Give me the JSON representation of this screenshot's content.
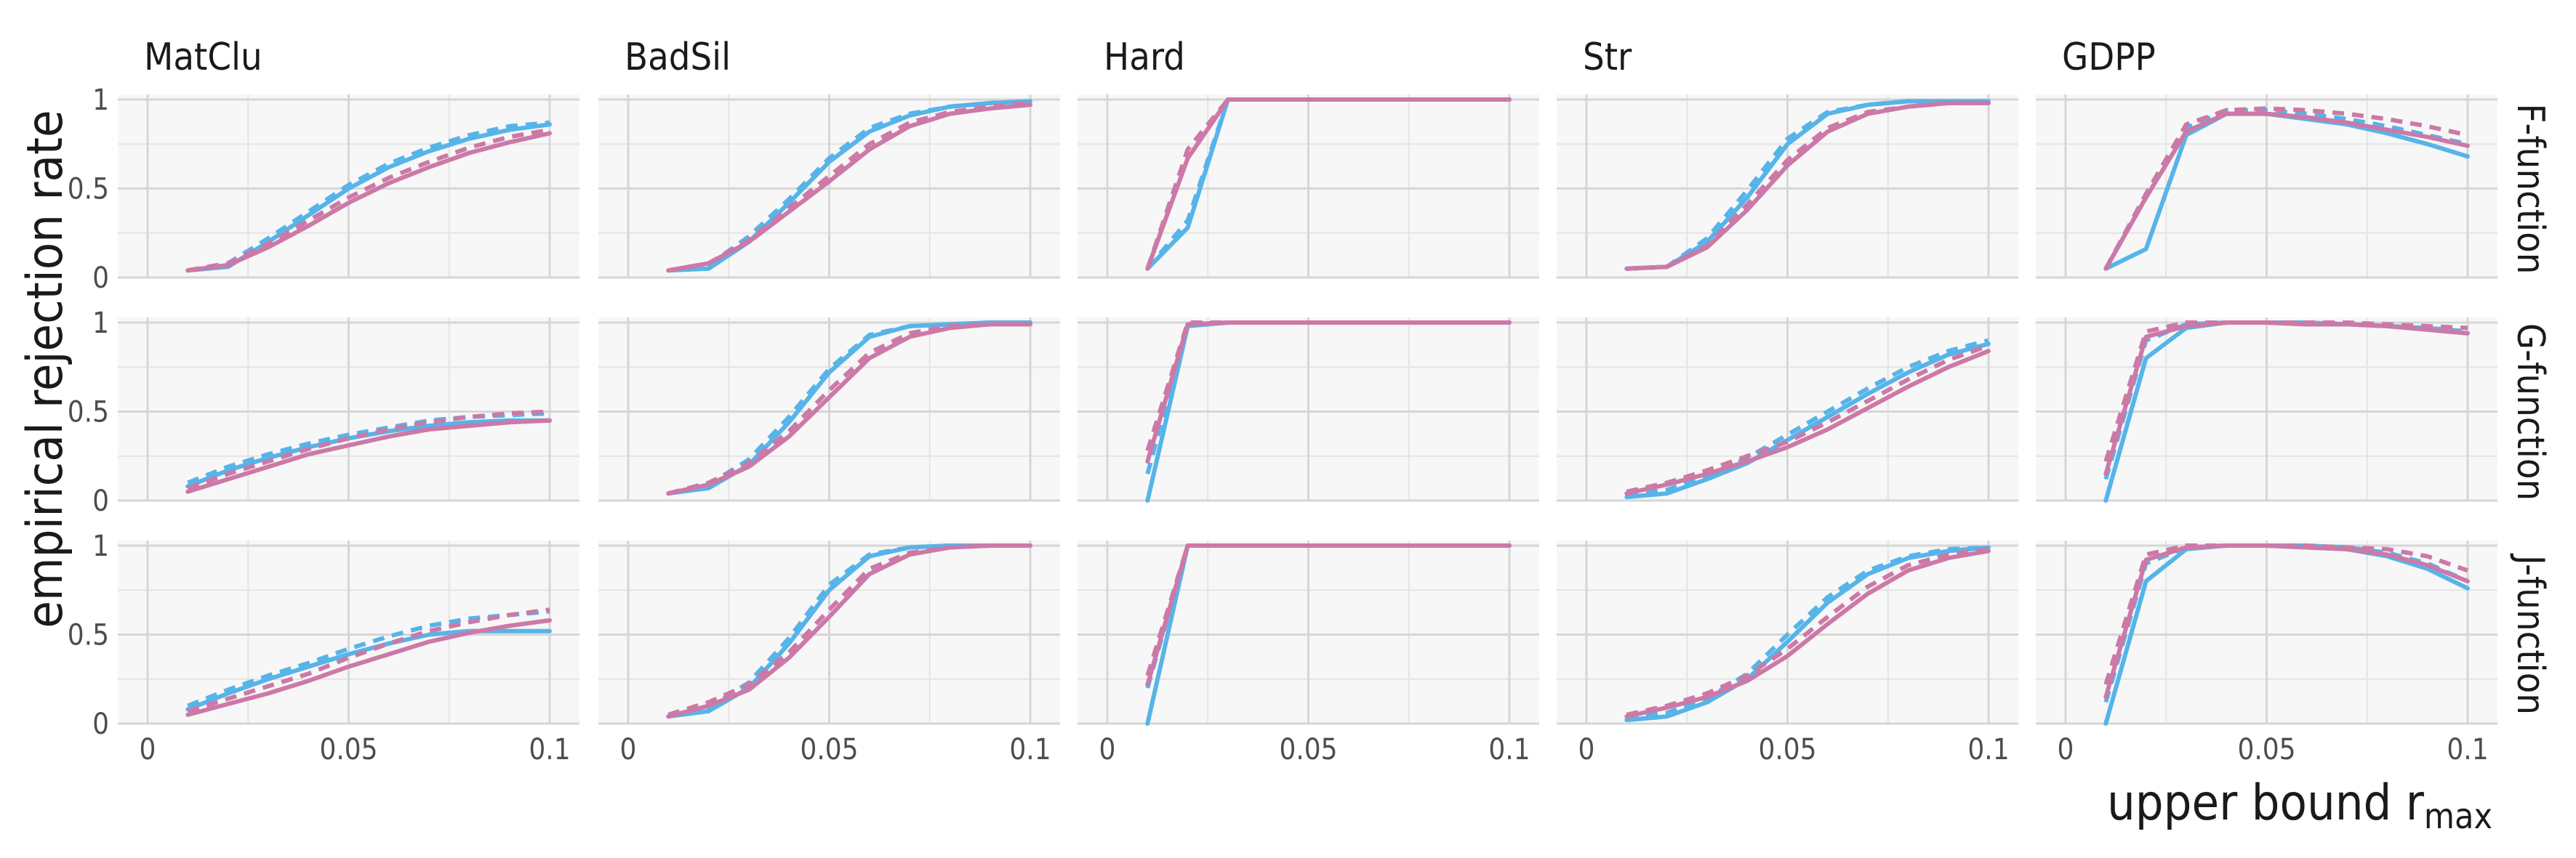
{
  "chart_data": {
    "type": "line",
    "ylabel": "empirical rejection rate",
    "xlabel": "upper bound r",
    "xlabel_subscript": "max",
    "columns": [
      "MatClu",
      "BadSil",
      "Hard",
      "Str",
      "GDPP"
    ],
    "rows": [
      "F-function",
      "G-function",
      "J-function"
    ],
    "xlim": [
      0,
      0.1
    ],
    "ylim": [
      0,
      1
    ],
    "x_ticks": [
      0,
      0.05,
      0.1
    ],
    "x_tick_labels": [
      "0",
      "0.05",
      "0.1"
    ],
    "y_ticks": [
      0,
      0.5,
      1
    ],
    "y_tick_labels": [
      "0",
      "0.5",
      "1"
    ],
    "x": [
      0.01,
      0.02,
      0.03,
      0.04,
      0.05,
      0.06,
      0.07,
      0.08,
      0.09,
      0.1
    ],
    "series_styles": [
      {
        "name": "blue solid",
        "color": "#56B4E9",
        "dash": false
      },
      {
        "name": "blue dashed",
        "color": "#56B4E9",
        "dash": true
      },
      {
        "name": "pink solid",
        "color": "#CC79A7",
        "dash": false
      },
      {
        "name": "pink dashed",
        "color": "#CC79A7",
        "dash": true
      }
    ],
    "panels": [
      {
        "column": "MatClu",
        "row": "F-function",
        "series": [
          {
            "values": [
              0.04,
              0.06,
              0.2,
              0.35,
              0.5,
              0.62,
              0.71,
              0.78,
              0.83,
              0.86
            ]
          },
          {
            "values": [
              0.04,
              0.08,
              0.22,
              0.37,
              0.52,
              0.64,
              0.73,
              0.8,
              0.85,
              0.87
            ]
          },
          {
            "values": [
              0.04,
              0.07,
              0.17,
              0.29,
              0.42,
              0.53,
              0.62,
              0.7,
              0.76,
              0.81
            ]
          },
          {
            "values": [
              0.04,
              0.08,
              0.19,
              0.32,
              0.45,
              0.56,
              0.65,
              0.73,
              0.79,
              0.83
            ]
          }
        ]
      },
      {
        "column": "BadSil",
        "row": "F-function",
        "series": [
          {
            "values": [
              0.04,
              0.05,
              0.2,
              0.42,
              0.65,
              0.82,
              0.91,
              0.96,
              0.98,
              0.99
            ]
          },
          {
            "values": [
              0.04,
              0.07,
              0.23,
              0.44,
              0.67,
              0.84,
              0.92,
              0.96,
              0.98,
              0.99
            ]
          },
          {
            "values": [
              0.04,
              0.08,
              0.2,
              0.37,
              0.54,
              0.72,
              0.85,
              0.92,
              0.95,
              0.97
            ]
          },
          {
            "values": [
              0.04,
              0.08,
              0.21,
              0.39,
              0.57,
              0.75,
              0.87,
              0.93,
              0.96,
              0.98
            ]
          }
        ]
      },
      {
        "column": "Hard",
        "row": "F-function",
        "series": [
          {
            "values": [
              0.05,
              0.28,
              1,
              1,
              1,
              1,
              1,
              1,
              1,
              1
            ]
          },
          {
            "values": [
              0.05,
              0.32,
              1,
              1,
              1,
              1,
              1,
              1,
              1,
              1
            ]
          },
          {
            "values": [
              0.05,
              0.67,
              1,
              1,
              1,
              1,
              1,
              1,
              1,
              1
            ]
          },
          {
            "values": [
              0.05,
              0.72,
              1,
              1,
              1,
              1,
              1,
              1,
              1,
              1
            ]
          }
        ]
      },
      {
        "column": "Str",
        "row": "F-function",
        "series": [
          {
            "values": [
              0.05,
              0.06,
              0.2,
              0.45,
              0.75,
              0.92,
              0.97,
              0.99,
              0.99,
              0.99
            ]
          },
          {
            "values": [
              0.05,
              0.06,
              0.22,
              0.49,
              0.78,
              0.93,
              0.97,
              0.99,
              0.99,
              0.99
            ]
          },
          {
            "values": [
              0.05,
              0.06,
              0.17,
              0.38,
              0.63,
              0.82,
              0.92,
              0.96,
              0.98,
              0.98
            ]
          },
          {
            "values": [
              0.05,
              0.06,
              0.18,
              0.41,
              0.66,
              0.84,
              0.93,
              0.96,
              0.98,
              0.98
            ]
          }
        ]
      },
      {
        "column": "GDPP",
        "row": "F-function",
        "series": [
          {
            "values": [
              0.05,
              0.16,
              0.8,
              0.92,
              0.92,
              0.89,
              0.86,
              0.81,
              0.75,
              0.68
            ]
          },
          {
            "values": [
              0.05,
              0.45,
              0.84,
              0.94,
              0.94,
              0.92,
              0.89,
              0.85,
              0.8,
              0.75
            ]
          },
          {
            "values": [
              0.05,
              0.45,
              0.82,
              0.92,
              0.92,
              0.9,
              0.87,
              0.83,
              0.79,
              0.74
            ]
          },
          {
            "values": [
              0.05,
              0.47,
              0.86,
              0.94,
              0.95,
              0.94,
              0.92,
              0.89,
              0.85,
              0.8
            ]
          }
        ]
      },
      {
        "column": "MatClu",
        "row": "G-function",
        "series": [
          {
            "values": [
              0.08,
              0.17,
              0.24,
              0.3,
              0.35,
              0.39,
              0.42,
              0.44,
              0.45,
              0.45
            ]
          },
          {
            "values": [
              0.1,
              0.19,
              0.26,
              0.32,
              0.37,
              0.41,
              0.45,
              0.47,
              0.48,
              0.49
            ]
          },
          {
            "values": [
              0.05,
              0.12,
              0.19,
              0.26,
              0.31,
              0.36,
              0.4,
              0.42,
              0.44,
              0.45
            ]
          },
          {
            "values": [
              0.07,
              0.15,
              0.22,
              0.29,
              0.35,
              0.4,
              0.44,
              0.47,
              0.49,
              0.5
            ]
          }
        ]
      },
      {
        "column": "BadSil",
        "row": "G-function",
        "series": [
          {
            "values": [
              0.04,
              0.07,
              0.2,
              0.44,
              0.72,
              0.92,
              0.98,
              0.99,
              1,
              1
            ]
          },
          {
            "values": [
              0.04,
              0.09,
              0.23,
              0.47,
              0.74,
              0.93,
              0.98,
              0.99,
              1,
              1
            ]
          },
          {
            "values": [
              0.04,
              0.09,
              0.19,
              0.36,
              0.58,
              0.8,
              0.92,
              0.97,
              0.99,
              0.99
            ]
          },
          {
            "values": [
              0.04,
              0.1,
              0.21,
              0.39,
              0.62,
              0.83,
              0.94,
              0.98,
              0.99,
              0.99
            ]
          }
        ]
      },
      {
        "column": "Hard",
        "row": "G-function",
        "series": [
          {
            "values": [
              0,
              0.98,
              1,
              1,
              1,
              1,
              1,
              1,
              1,
              1
            ]
          },
          {
            "values": [
              0.15,
              0.99,
              1,
              1,
              1,
              1,
              1,
              1,
              1,
              1
            ]
          },
          {
            "values": [
              0.22,
              0.99,
              1,
              1,
              1,
              1,
              1,
              1,
              1,
              1
            ]
          },
          {
            "values": [
              0.28,
              1,
              1,
              1,
              1,
              1,
              1,
              1,
              1,
              1
            ]
          }
        ]
      },
      {
        "column": "Str",
        "row": "G-function",
        "series": [
          {
            "values": [
              0.02,
              0.04,
              0.12,
              0.21,
              0.34,
              0.47,
              0.6,
              0.72,
              0.82,
              0.88
            ]
          },
          {
            "values": [
              0.03,
              0.06,
              0.14,
              0.24,
              0.37,
              0.5,
              0.63,
              0.75,
              0.84,
              0.9
            ]
          },
          {
            "values": [
              0.04,
              0.09,
              0.15,
              0.22,
              0.3,
              0.4,
              0.52,
              0.64,
              0.75,
              0.84
            ]
          },
          {
            "values": [
              0.05,
              0.1,
              0.17,
              0.25,
              0.33,
              0.44,
              0.56,
              0.68,
              0.79,
              0.87
            ]
          }
        ]
      },
      {
        "column": "GDPP",
        "row": "G-function",
        "series": [
          {
            "values": [
              0,
              0.8,
              0.97,
              1,
              1,
              0.99,
              0.99,
              0.98,
              0.96,
              0.94
            ]
          },
          {
            "values": [
              0.12,
              0.9,
              0.99,
              1,
              1,
              1,
              0.99,
              0.98,
              0.97,
              0.95
            ]
          },
          {
            "values": [
              0.15,
              0.92,
              0.98,
              1,
              1,
              0.99,
              0.99,
              0.98,
              0.96,
              0.94
            ]
          },
          {
            "values": [
              0.22,
              0.95,
              1,
              1,
              1,
              1,
              1,
              0.99,
              0.98,
              0.97
            ]
          }
        ]
      },
      {
        "column": "MatClu",
        "row": "J-function",
        "series": [
          {
            "values": [
              0.08,
              0.17,
              0.25,
              0.32,
              0.39,
              0.45,
              0.5,
              0.52,
              0.52,
              0.52
            ]
          },
          {
            "values": [
              0.1,
              0.19,
              0.27,
              0.34,
              0.42,
              0.49,
              0.55,
              0.59,
              0.61,
              0.63
            ]
          },
          {
            "values": [
              0.05,
              0.11,
              0.17,
              0.24,
              0.32,
              0.39,
              0.46,
              0.51,
              0.55,
              0.58
            ]
          },
          {
            "values": [
              0.07,
              0.14,
              0.21,
              0.28,
              0.37,
              0.45,
              0.52,
              0.57,
              0.61,
              0.64
            ]
          }
        ]
      },
      {
        "column": "BadSil",
        "row": "J-function",
        "series": [
          {
            "values": [
              0.04,
              0.07,
              0.2,
              0.45,
              0.75,
              0.94,
              0.99,
              1,
              1,
              1
            ]
          },
          {
            "values": [
              0.04,
              0.09,
              0.23,
              0.48,
              0.78,
              0.95,
              0.99,
              1,
              1,
              1
            ]
          },
          {
            "values": [
              0.04,
              0.1,
              0.19,
              0.37,
              0.6,
              0.84,
              0.95,
              0.99,
              1,
              1
            ]
          },
          {
            "values": [
              0.05,
              0.12,
              0.22,
              0.4,
              0.64,
              0.87,
              0.96,
              0.99,
              1,
              1
            ]
          }
        ]
      },
      {
        "column": "Hard",
        "row": "J-function",
        "series": [
          {
            "values": [
              0,
              1,
              1,
              1,
              1,
              1,
              1,
              1,
              1,
              1
            ]
          },
          {
            "values": [
              0.2,
              1,
              1,
              1,
              1,
              1,
              1,
              1,
              1,
              1
            ]
          },
          {
            "values": [
              0.22,
              1,
              1,
              1,
              1,
              1,
              1,
              1,
              1,
              1
            ]
          },
          {
            "values": [
              0.27,
              1,
              1,
              1,
              1,
              1,
              1,
              1,
              1,
              1
            ]
          }
        ]
      },
      {
        "column": "Str",
        "row": "J-function",
        "series": [
          {
            "values": [
              0.02,
              0.04,
              0.12,
              0.25,
              0.46,
              0.68,
              0.84,
              0.93,
              0.97,
              0.99
            ]
          },
          {
            "values": [
              0.03,
              0.06,
              0.14,
              0.28,
              0.5,
              0.71,
              0.86,
              0.94,
              0.98,
              0.99
            ]
          },
          {
            "values": [
              0.04,
              0.09,
              0.15,
              0.24,
              0.38,
              0.56,
              0.73,
              0.86,
              0.93,
              0.97
            ]
          },
          {
            "values": [
              0.05,
              0.1,
              0.17,
              0.27,
              0.42,
              0.6,
              0.77,
              0.89,
              0.95,
              0.98
            ]
          }
        ]
      },
      {
        "column": "GDPP",
        "row": "J-function",
        "series": [
          {
            "values": [
              0,
              0.8,
              0.98,
              1,
              1,
              0.99,
              0.98,
              0.94,
              0.87,
              0.76
            ]
          },
          {
            "values": [
              0.12,
              0.9,
              0.99,
              1,
              1,
              1,
              0.99,
              0.96,
              0.9,
              0.8
            ]
          },
          {
            "values": [
              0.15,
              0.92,
              0.99,
              1,
              1,
              0.99,
              0.98,
              0.95,
              0.89,
              0.8
            ]
          },
          {
            "values": [
              0.22,
              0.95,
              1,
              1,
              1,
              1,
              0.99,
              0.98,
              0.94,
              0.86
            ]
          }
        ]
      }
    ]
  }
}
